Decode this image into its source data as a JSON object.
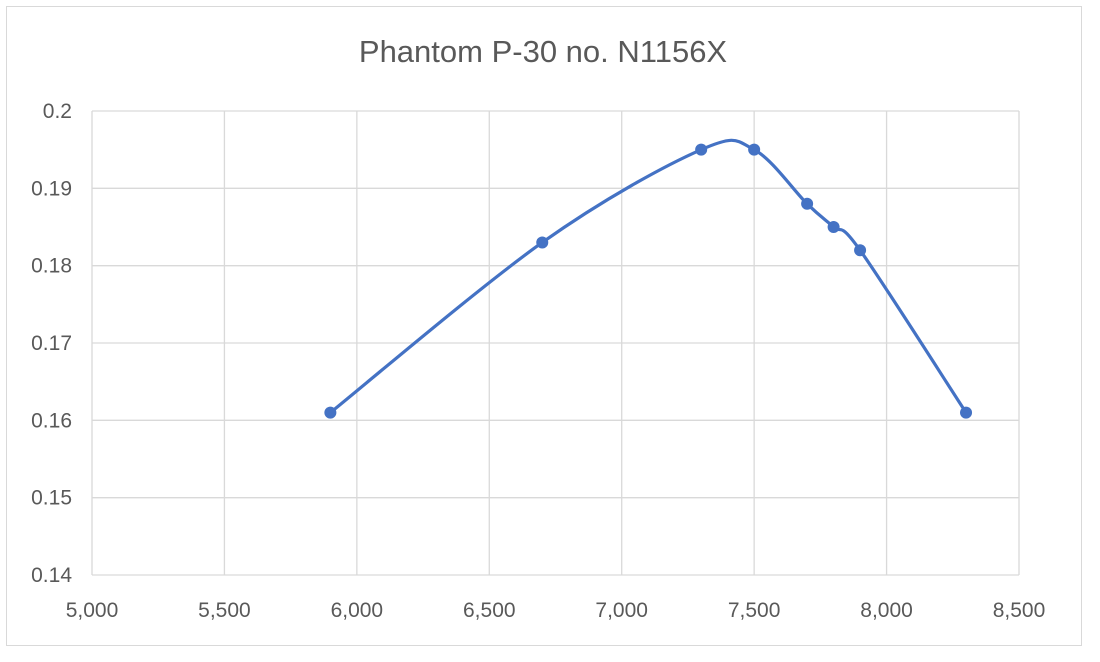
{
  "chart_data": {
    "type": "scatter",
    "title": "Phantom P-30 no. N1156X",
    "xlabel": "",
    "ylabel": "",
    "smooth_line": true,
    "markers": true,
    "grid": true,
    "legend": "none",
    "xlim": [
      5000,
      8500
    ],
    "ylim": [
      0.14,
      0.2
    ],
    "x_ticks": [
      5000,
      5500,
      6000,
      6500,
      7000,
      7500,
      8000,
      8500
    ],
    "y_ticks": [
      0.14,
      0.15,
      0.16,
      0.17,
      0.18,
      0.19,
      0.2
    ],
    "x_tick_labels": [
      "5,000",
      "5,500",
      "6,000",
      "6,500",
      "7,000",
      "7,500",
      "8,000",
      "8,500"
    ],
    "y_tick_labels": [
      "0.14",
      "0.15",
      "0.16",
      "0.17",
      "0.18",
      "0.19",
      "0.2"
    ],
    "series": [
      {
        "color": "#4472c4",
        "x": [
          5900,
          6700,
          7300,
          7500,
          7700,
          7800,
          7900,
          8300
        ],
        "y": [
          0.161,
          0.183,
          0.195,
          0.195,
          0.188,
          0.185,
          0.182,
          0.161
        ]
      }
    ]
  }
}
